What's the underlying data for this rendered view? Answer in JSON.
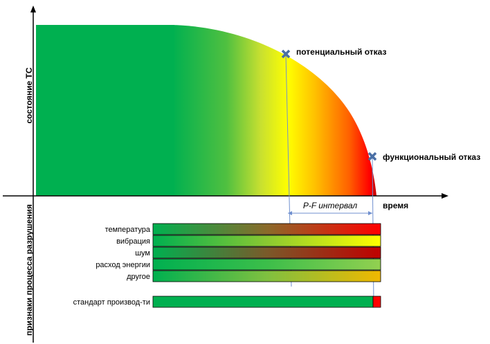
{
  "axes": {
    "y_label": "состояние ТС",
    "x_label": "время",
    "lower_y_label": "признаки процесса разрушения"
  },
  "events": {
    "potential_failure": "потенциальный отказ",
    "functional_failure": "функциональный отказ",
    "pf_interval": "P-F интервал"
  },
  "indicators": [
    {
      "label": "температура",
      "colors": [
        "#00b050",
        "#8a6a2a",
        "#ff0000"
      ]
    },
    {
      "label": "вибрация",
      "colors": [
        "#00b050",
        "#8ac832",
        "#ffff00"
      ]
    },
    {
      "label": "шум",
      "colors": [
        "#00b050",
        "#7a5a2a",
        "#c00000"
      ]
    },
    {
      "label": "расход энергии",
      "colors": [
        "#00b050",
        "#3cbe4a",
        "#92d050"
      ]
    },
    {
      "label": "другое",
      "colors": [
        "#00b050",
        "#7fc040",
        "#f0b800"
      ]
    }
  ],
  "production_standard": {
    "label": "стандарт производ-ти",
    "colors": [
      "#00b050",
      "#ff0000"
    ]
  },
  "colors": {
    "green": "#00b050",
    "yellow": "#ffff00",
    "orange": "#ffc000",
    "red": "#ff0000",
    "dark_red": "#c00000",
    "marker": "#4a6fa5",
    "guide_line": "#6f8fcf"
  }
}
